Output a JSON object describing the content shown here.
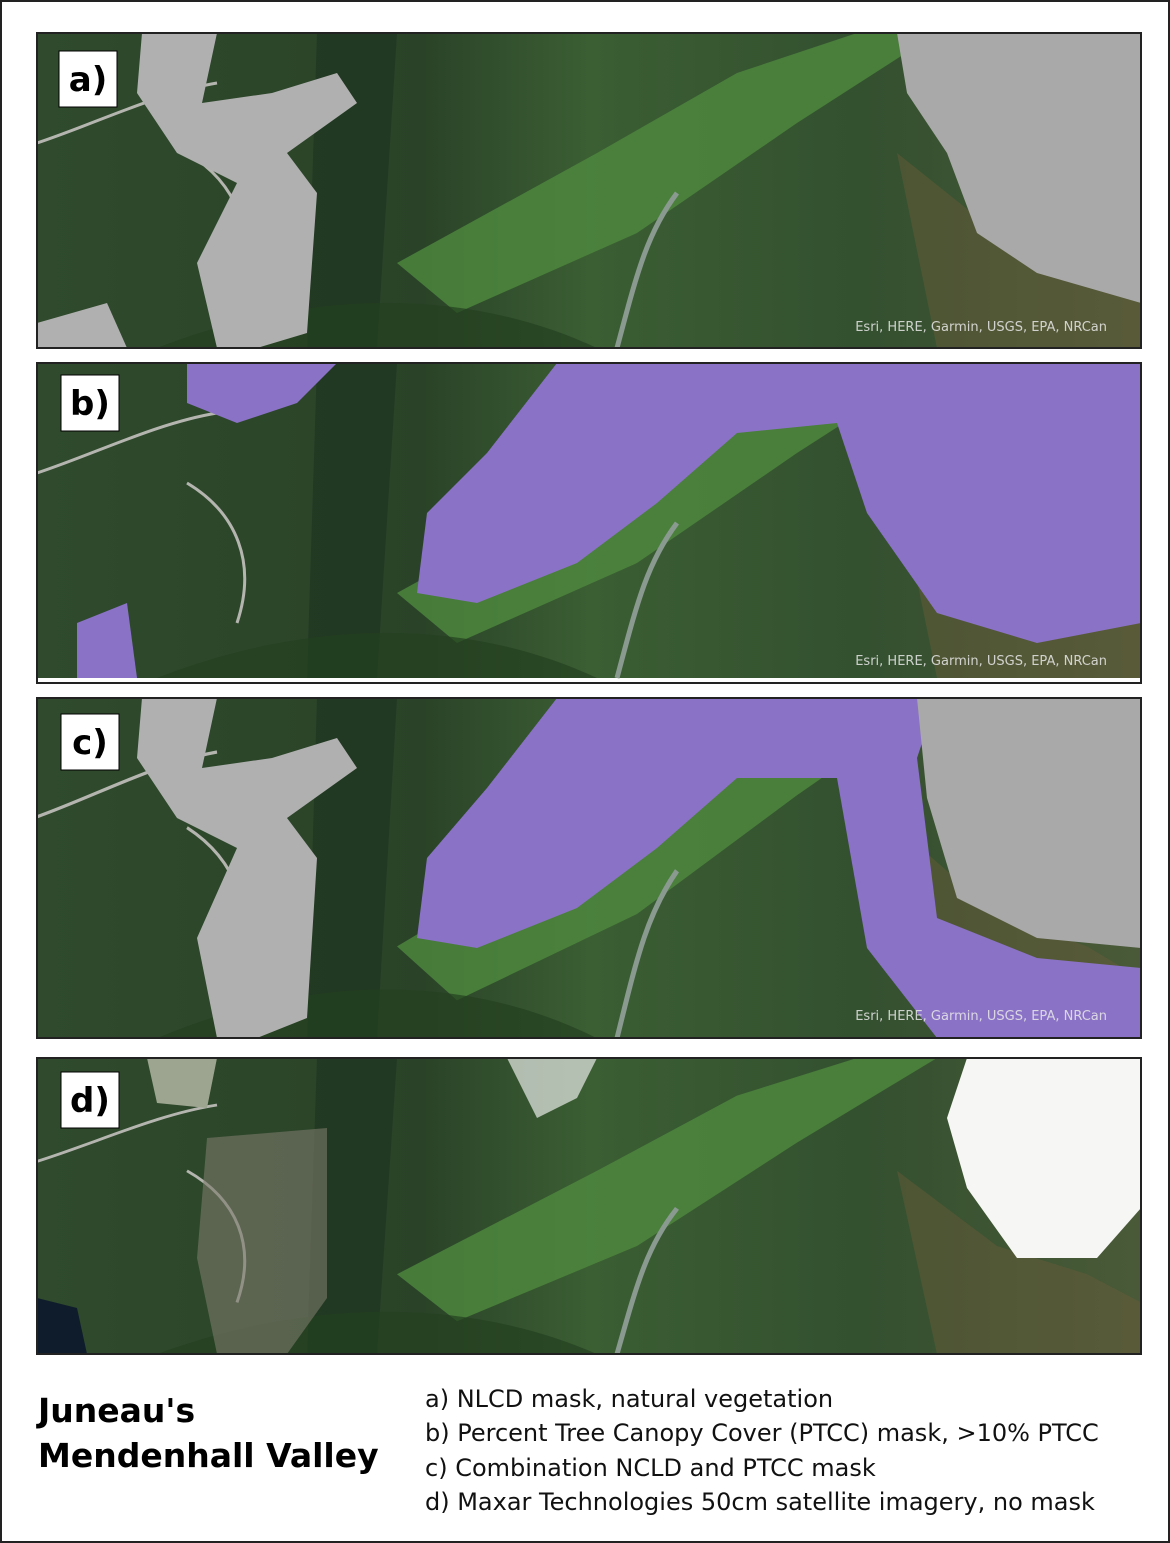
{
  "panels": [
    {
      "label": "a)",
      "attribution": "Esri, HERE, Garmin, USGS, EPA, NRCan"
    },
    {
      "label": "b)",
      "attribution": "Esri, HERE, Garmin, USGS, EPA, NRCan"
    },
    {
      "label": "c)",
      "attribution": "Esri, HERE, Garmin, USGS, EPA, NRCan"
    },
    {
      "label": "d)"
    }
  ],
  "title": [
    "Juneau's",
    "Mendenhall Valley"
  ],
  "captions": [
    "a) NLCD mask, natural vegetation",
    "b) Percent Tree Canopy Cover (PTCC) mask, >10% PTCC",
    "c) Combination NCLD and PTCC mask",
    "d) Maxar Technologies 50cm satellite imagery, no mask"
  ]
}
